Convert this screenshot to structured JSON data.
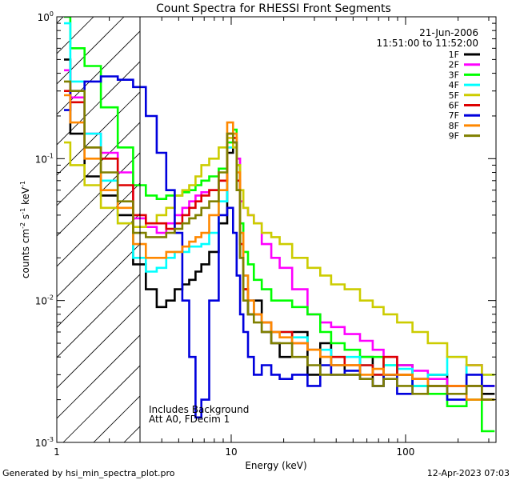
{
  "chart_data": {
    "type": "line",
    "title": "Count Spectra for RHESSI Front Segments",
    "xlabel": "Energy (keV)",
    "ylabel": {
      "base": "counts cm",
      "exp1": "-2",
      "mid": " s",
      "exp2": "-1",
      "end": " keV",
      "exp3": "-1"
    },
    "xscale": "log",
    "yscale": "log",
    "xlim": [
      1,
      330
    ],
    "ylim": [
      0.001,
      1
    ],
    "x_ticks": [
      {
        "v": 1,
        "label": "1"
      },
      {
        "v": 10,
        "label": "10"
      },
      {
        "v": 100,
        "label": "100"
      }
    ],
    "y_ticks": [
      {
        "v": 1,
        "base": "10",
        "exp": "0"
      },
      {
        "v": 0.1,
        "base": "10",
        "exp": "-1"
      },
      {
        "v": 0.01,
        "base": "10",
        "exp": "-2"
      },
      {
        "v": 0.001,
        "base": "10",
        "exp": "-3"
      }
    ],
    "hatched_region_max_keV": 3,
    "date": "21-Jun-2006",
    "time_range": "11:51:00 to 11:52:00",
    "annotation_lines": [
      "Includes Background",
      "Att A0, FDecim 1"
    ],
    "series": [
      {
        "name": "1F",
        "color": "#000000",
        "x": [
          1.1,
          1.3,
          1.6,
          2,
          2.5,
          3,
          3.5,
          4,
          4.5,
          5,
          5.5,
          6,
          6.5,
          7,
          8,
          9,
          10,
          10.5,
          11,
          11.5,
          12,
          13,
          14,
          16,
          18,
          20,
          25,
          30,
          35,
          40,
          50,
          60,
          70,
          80,
          100,
          120,
          150,
          200,
          250,
          300
        ],
        "y": [
          0.5,
          0.15,
          0.075,
          0.055,
          0.04,
          0.018,
          0.012,
          0.009,
          0.01,
          0.012,
          0.013,
          0.014,
          0.016,
          0.018,
          0.022,
          0.035,
          0.11,
          0.13,
          0.06,
          0.02,
          0.012,
          0.008,
          0.01,
          0.006,
          0.005,
          0.004,
          0.006,
          0.003,
          0.005,
          0.0035,
          0.003,
          0.004,
          0.0025,
          0.003,
          0.0035,
          0.0025,
          0.003,
          0.0025,
          0.0035,
          0.0022
        ]
      },
      {
        "name": "2F",
        "color": "#ff00ff",
        "x": [
          1.1,
          1.3,
          1.6,
          2,
          2.5,
          3,
          3.5,
          4,
          4.5,
          5,
          5.5,
          6,
          6.5,
          7,
          8,
          9,
          10,
          10.5,
          11,
          11.5,
          12,
          13,
          14,
          16,
          18,
          20,
          25,
          30,
          35,
          40,
          50,
          60,
          70,
          80,
          100,
          120,
          150,
          200,
          250,
          300
        ],
        "y": [
          0.42,
          0.27,
          0.15,
          0.11,
          0.08,
          0.038,
          0.033,
          0.03,
          0.035,
          0.04,
          0.045,
          0.05,
          0.055,
          0.058,
          0.06,
          0.07,
          0.12,
          0.13,
          0.1,
          0.05,
          0.045,
          0.04,
          0.035,
          0.025,
          0.02,
          0.017,
          0.012,
          0.008,
          0.007,
          0.0065,
          0.0058,
          0.0052,
          0.0045,
          0.004,
          0.0035,
          0.0032,
          0.0028,
          0.0025,
          0.0035,
          0.0025
        ]
      },
      {
        "name": "3F",
        "color": "#00ff00",
        "x": [
          1.1,
          1.3,
          1.6,
          2,
          2.5,
          3,
          3.5,
          4,
          4.5,
          5,
          5.5,
          6,
          6.5,
          7,
          8,
          9,
          10,
          10.5,
          11,
          11.5,
          12,
          13,
          14,
          16,
          18,
          20,
          25,
          30,
          35,
          40,
          50,
          60,
          70,
          80,
          100,
          120,
          150,
          200,
          250,
          300
        ],
        "y": [
          1,
          0.6,
          0.45,
          0.23,
          0.12,
          0.065,
          0.055,
          0.052,
          0.055,
          0.055,
          0.058,
          0.06,
          0.065,
          0.07,
          0.075,
          0.085,
          0.13,
          0.16,
          0.09,
          0.035,
          0.022,
          0.018,
          0.014,
          0.012,
          0.01,
          0.01,
          0.009,
          0.008,
          0.006,
          0.005,
          0.0045,
          0.004,
          0.004,
          0.0035,
          0.003,
          0.0025,
          0.0022,
          0.0018,
          0.002,
          0.0012
        ]
      },
      {
        "name": "4F",
        "color": "#00ffff",
        "x": [
          1.1,
          1.3,
          1.6,
          2,
          2.5,
          3,
          3.5,
          4,
          4.5,
          5,
          5.5,
          6,
          6.5,
          7,
          8,
          9,
          10,
          10.5,
          11,
          11.5,
          12,
          13,
          14,
          16,
          18,
          20,
          25,
          30,
          35,
          40,
          50,
          60,
          70,
          80,
          100,
          120,
          150,
          200,
          250,
          300
        ],
        "y": [
          0.9,
          0.35,
          0.15,
          0.07,
          0.035,
          0.02,
          0.016,
          0.017,
          0.02,
          0.022,
          0.022,
          0.024,
          0.024,
          0.025,
          0.03,
          0.05,
          0.12,
          0.12,
          0.07,
          0.03,
          0.015,
          0.01,
          0.008,
          0.007,
          0.006,
          0.006,
          0.0055,
          0.0045,
          0.0045,
          0.004,
          0.004,
          0.0035,
          0.003,
          0.0035,
          0.0033,
          0.0025,
          0.003,
          0.004,
          0.0025,
          0.003
        ]
      },
      {
        "name": "5F",
        "color": "#cccc00",
        "x": [
          1.1,
          1.3,
          1.6,
          2,
          2.5,
          3,
          3.5,
          4,
          4.5,
          5,
          5.5,
          6,
          6.5,
          7,
          8,
          9,
          10,
          10.5,
          11,
          11.5,
          12,
          13,
          14,
          16,
          18,
          20,
          25,
          30,
          35,
          40,
          50,
          60,
          70,
          80,
          100,
          120,
          150,
          200,
          250,
          300
        ],
        "y": [
          0.13,
          0.09,
          0.065,
          0.045,
          0.035,
          0.033,
          0.035,
          0.04,
          0.045,
          0.055,
          0.06,
          0.065,
          0.075,
          0.09,
          0.1,
          0.12,
          0.14,
          0.12,
          0.09,
          0.06,
          0.045,
          0.04,
          0.035,
          0.03,
          0.028,
          0.025,
          0.02,
          0.017,
          0.015,
          0.013,
          0.012,
          0.01,
          0.009,
          0.008,
          0.007,
          0.006,
          0.005,
          0.004,
          0.0035,
          0.003
        ]
      },
      {
        "name": "6F",
        "color": "#dd0000",
        "x": [
          1.1,
          1.3,
          1.6,
          2,
          2.5,
          3,
          3.5,
          4,
          4.5,
          5,
          5.5,
          6,
          6.5,
          7,
          8,
          9,
          10,
          10.5,
          11,
          11.5,
          12,
          13,
          14,
          16,
          18,
          20,
          25,
          30,
          35,
          40,
          50,
          60,
          70,
          80,
          100,
          120,
          150,
          200,
          250,
          300
        ],
        "y": [
          0.3,
          0.25,
          0.12,
          0.1,
          0.065,
          0.04,
          0.035,
          0.035,
          0.032,
          0.035,
          0.04,
          0.045,
          0.05,
          0.055,
          0.06,
          0.07,
          0.15,
          0.14,
          0.07,
          0.025,
          0.012,
          0.01,
          0.008,
          0.007,
          0.006,
          0.006,
          0.005,
          0.0045,
          0.004,
          0.004,
          0.0035,
          0.0035,
          0.003,
          0.004,
          0.003,
          0.0028,
          0.0025,
          0.0025,
          0.0025,
          0.002
        ]
      },
      {
        "name": "7F",
        "color": "#0000dd",
        "x": [
          1.1,
          1.3,
          1.6,
          2,
          2.5,
          3,
          3.5,
          4,
          4.5,
          5,
          5.5,
          6,
          6.5,
          7,
          8,
          9,
          10,
          10.5,
          11,
          11.5,
          12,
          13,
          14,
          16,
          18,
          20,
          25,
          30,
          35,
          40,
          50,
          60,
          70,
          80,
          100,
          120,
          150,
          200,
          250,
          300
        ],
        "y": [
          0.22,
          0.3,
          0.35,
          0.38,
          0.36,
          0.32,
          0.2,
          0.11,
          0.06,
          0.03,
          0.01,
          0.004,
          0.0015,
          0.002,
          0.01,
          0.04,
          0.045,
          0.03,
          0.015,
          0.008,
          0.006,
          0.004,
          0.003,
          0.0035,
          0.003,
          0.0028,
          0.003,
          0.0025,
          0.0035,
          0.003,
          0.0032,
          0.0028,
          0.0025,
          0.003,
          0.0022,
          0.0028,
          0.0025,
          0.002,
          0.003,
          0.0025
        ]
      },
      {
        "name": "8F",
        "color": "#ff8800",
        "x": [
          1.1,
          1.3,
          1.6,
          2,
          2.5,
          3,
          3.5,
          4,
          4.5,
          5,
          5.5,
          6,
          6.5,
          7,
          8,
          9,
          10,
          10.5,
          11,
          11.5,
          12,
          13,
          14,
          16,
          18,
          20,
          25,
          30,
          35,
          40,
          50,
          60,
          70,
          80,
          100,
          120,
          150,
          200,
          250,
          300
        ],
        "y": [
          0.28,
          0.18,
          0.1,
          0.06,
          0.045,
          0.025,
          0.02,
          0.02,
          0.022,
          0.022,
          0.024,
          0.026,
          0.028,
          0.03,
          0.04,
          0.06,
          0.18,
          0.15,
          0.08,
          0.03,
          0.015,
          0.01,
          0.008,
          0.007,
          0.006,
          0.0055,
          0.005,
          0.0045,
          0.004,
          0.0035,
          0.0035,
          0.003,
          0.0033,
          0.003,
          0.003,
          0.0028,
          0.0025,
          0.0025,
          0.002,
          0.002
        ]
      },
      {
        "name": "9F",
        "color": "#808000",
        "x": [
          1.1,
          1.3,
          1.6,
          2,
          2.5,
          3,
          3.5,
          4,
          4.5,
          5,
          5.5,
          6,
          6.5,
          7,
          8,
          9,
          10,
          10.5,
          11,
          11.5,
          12,
          13,
          14,
          16,
          18,
          20,
          25,
          30,
          35,
          40,
          50,
          60,
          70,
          80,
          100,
          120,
          150,
          200,
          250,
          300
        ],
        "y": [
          0.35,
          0.3,
          0.12,
          0.08,
          0.05,
          0.03,
          0.028,
          0.028,
          0.03,
          0.032,
          0.035,
          0.038,
          0.04,
          0.045,
          0.05,
          0.08,
          0.15,
          0.13,
          0.06,
          0.02,
          0.01,
          0.008,
          0.007,
          0.006,
          0.005,
          0.005,
          0.004,
          0.0035,
          0.003,
          0.003,
          0.003,
          0.0028,
          0.0025,
          0.0028,
          0.0025,
          0.0022,
          0.0025,
          0.0022,
          0.0025,
          0.002
        ]
      }
    ]
  },
  "footer": {
    "generator": "Generated by hsi_min_spectra_plot.pro",
    "timestamp": "12-Apr-2023 07:03"
  }
}
